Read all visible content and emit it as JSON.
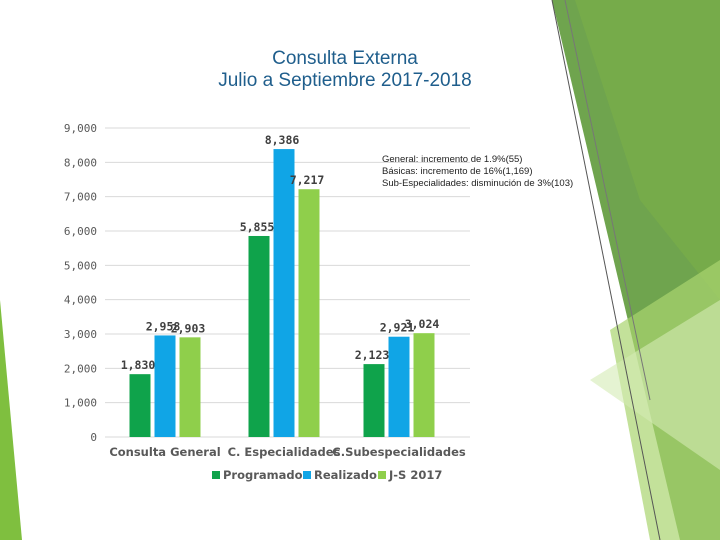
{
  "slide": {
    "title_line1": "Consulta Externa",
    "title_line2": "Julio a Septiembre 2017-2018",
    "notes": [
      "General: incremento de 1.9%(55)",
      "Básicas: incremento de 16%(1,169)",
      "Sub-Especialidades: disminución de 3%(103)"
    ]
  },
  "colors": {
    "programado": "#0fa34b",
    "realizado": "#10a5e6",
    "js2017": "#8fcf4b",
    "deco_dark": "#5f9a3b",
    "deco_light": "#a9d46f"
  },
  "chart_data": {
    "type": "bar",
    "categories": [
      "Consulta General",
      "C. Especialidades",
      "C.Subespecialidades"
    ],
    "series": [
      {
        "name": "Programado",
        "values": [
          1830,
          5855,
          2123
        ]
      },
      {
        "name": "Realizado",
        "values": [
          2958,
          8386,
          2921
        ]
      },
      {
        "name": "J-S 2017",
        "values": [
          2903,
          7217,
          3024
        ]
      }
    ],
    "data_labels": [
      [
        "1,830",
        "5,855",
        "2,123"
      ],
      [
        "2,958",
        "8,386",
        "2,921"
      ],
      [
        "2,903",
        "7,217",
        "3,024"
      ]
    ],
    "ylim": [
      0,
      9000
    ],
    "yticks": [
      0,
      1000,
      2000,
      3000,
      4000,
      5000,
      6000,
      7000,
      8000,
      9000
    ],
    "ytick_labels": [
      "0",
      "1,000",
      "2,000",
      "3,000",
      "4,000",
      "5,000",
      "6,000",
      "7,000",
      "8,000",
      "9,000"
    ],
    "grid": true,
    "legend_position": "bottom"
  }
}
